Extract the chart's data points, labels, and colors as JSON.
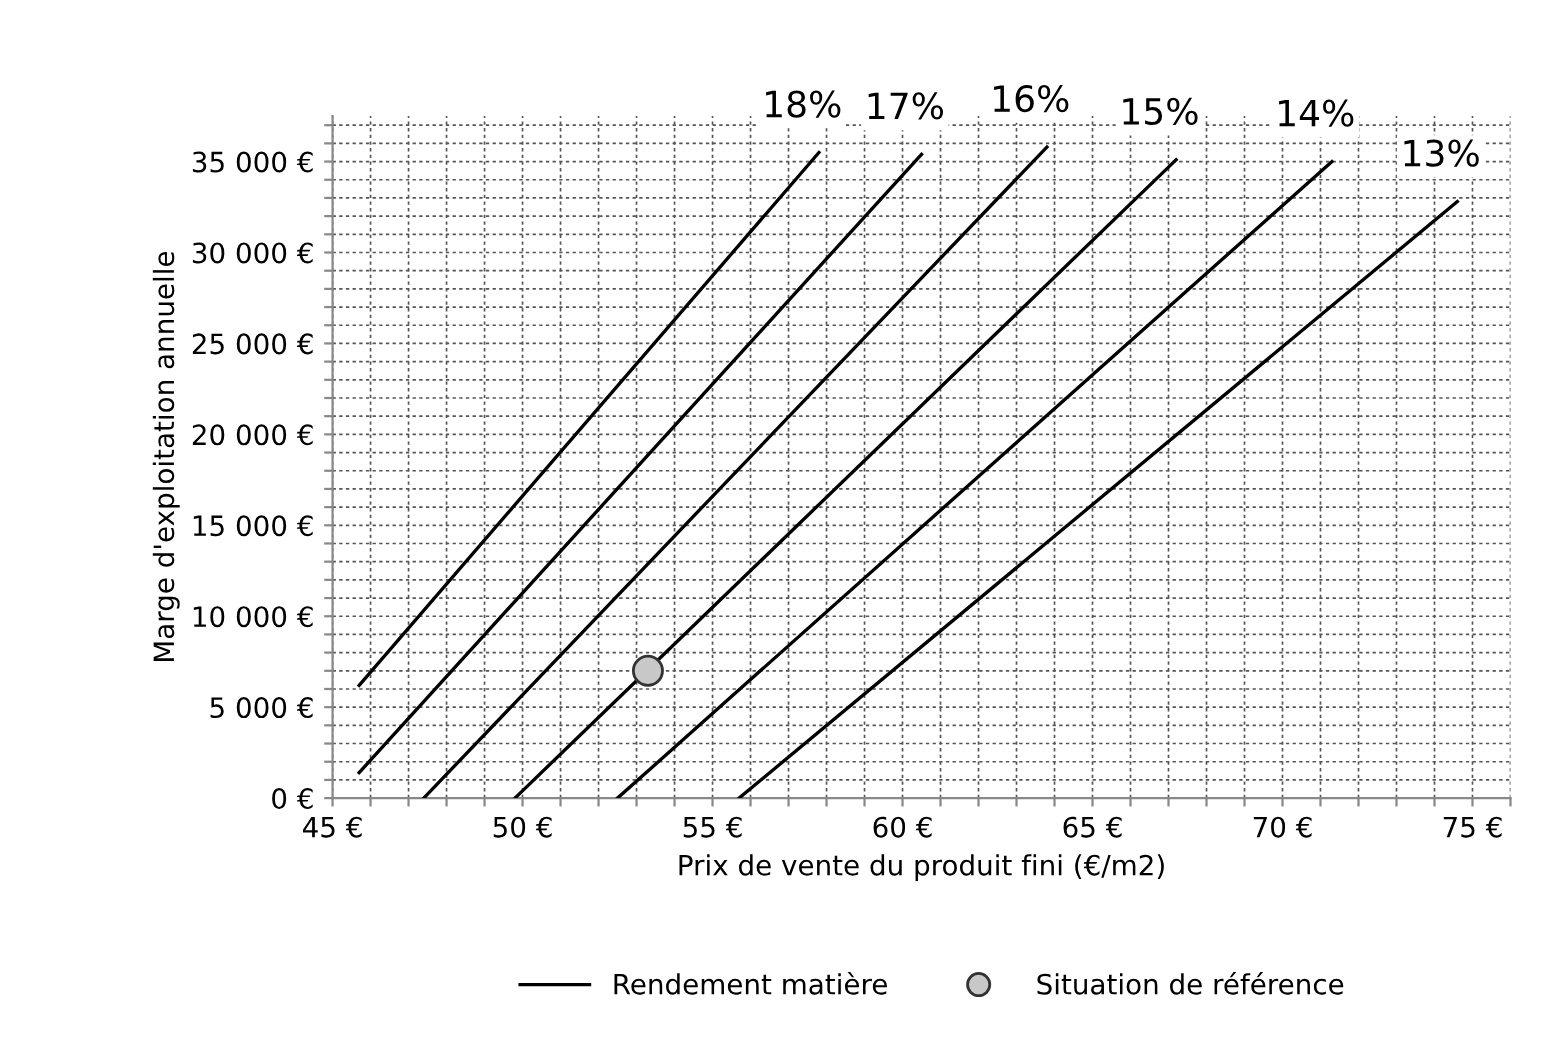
{
  "chart_data": {
    "type": "line",
    "xlabel": "Prix de vente du produit fini (€/m2)",
    "ylabel": "Marge d'exploitation annuelle",
    "series": [
      {
        "name": "Rendement matière",
        "color": "#000000",
        "x": [
          45.7,
          57.8
        ],
        "values": [
          6200,
          35500
        ]
      },
      {
        "color": "#000000",
        "x": [
          45.7,
          60.5
        ],
        "values": [
          1400,
          35400
        ]
      },
      {
        "color": "#000000",
        "x": [
          47.4,
          63.8
        ],
        "values": [
          0,
          35800
        ]
      },
      {
        "color": "#000000",
        "x": [
          49.8,
          67.2
        ],
        "values": [
          0,
          35100
        ]
      },
      {
        "color": "#000000",
        "x": [
          52.5,
          71.3
        ],
        "values": [
          0,
          35000
        ]
      },
      {
        "color": "#000000",
        "x": [
          55.7,
          74.6
        ],
        "values": [
          0,
          32800
        ]
      },
      {
        "name": "Situation de référence",
        "type": "scatter",
        "color": "#c8c8c8",
        "x": [
          53.3
        ],
        "values": [
          7000
        ],
        "marker": "circle"
      }
    ],
    "annotations": [
      {
        "text": "18%",
        "x": 57.8,
        "y": 35500
      },
      {
        "text": "17%",
        "x": 60.5,
        "y": 35400
      },
      {
        "text": "16%",
        "x": 63.8,
        "y": 35800
      },
      {
        "text": "15%",
        "x": 67.2,
        "y": 35100
      },
      {
        "text": "14%",
        "x": 71.3,
        "y": 35000
      },
      {
        "text": "13%",
        "x": 74.6,
        "y": 32800
      }
    ],
    "xlim": [
      45,
      76
    ],
    "ylim": [
      0,
      37500
    ],
    "xticks": [
      {
        "value": 45,
        "label": "45 €"
      },
      {
        "value": 46,
        "label": null
      },
      {
        "value": 47,
        "label": null
      },
      {
        "value": 48,
        "label": null
      },
      {
        "value": 49,
        "label": null
      },
      {
        "value": 50,
        "label": "50 €"
      },
      {
        "value": 51,
        "label": null
      },
      {
        "value": 52,
        "label": null
      },
      {
        "value": 53,
        "label": null
      },
      {
        "value": 54,
        "label": null
      },
      {
        "value": 55,
        "label": "55 €"
      },
      {
        "value": 56,
        "label": null
      },
      {
        "value": 57,
        "label": null
      },
      {
        "value": 58,
        "label": null
      },
      {
        "value": 59,
        "label": null
      },
      {
        "value": 60,
        "label": "60 €"
      },
      {
        "value": 61,
        "label": null
      },
      {
        "value": 62,
        "label": null
      },
      {
        "value": 63,
        "label": null
      },
      {
        "value": 64,
        "label": null
      },
      {
        "value": 65,
        "label": "65 €"
      },
      {
        "value": 66,
        "label": null
      },
      {
        "value": 67,
        "label": null
      },
      {
        "value": 68,
        "label": null
      },
      {
        "value": 69,
        "label": null
      },
      {
        "value": 70,
        "label": "70 €"
      },
      {
        "value": 71,
        "label": null
      },
      {
        "value": 72,
        "label": null
      },
      {
        "value": 73,
        "label": null
      },
      {
        "value": 74,
        "label": null
      },
      {
        "value": 75,
        "label": "75 €"
      },
      {
        "value": 76,
        "label": null
      }
    ],
    "yticks": [
      {
        "value": 0,
        "label": "0 €"
      },
      {
        "value": 1000,
        "label": null
      },
      {
        "value": 2000,
        "label": null
      },
      {
        "value": 3000,
        "label": null
      },
      {
        "value": 4000,
        "label": null
      },
      {
        "value": 5000,
        "label": "5 000 €"
      },
      {
        "value": 6000,
        "label": null
      },
      {
        "value": 7000,
        "label": null
      },
      {
        "value": 8000,
        "label": null
      },
      {
        "value": 9000,
        "label": null
      },
      {
        "value": 10000,
        "label": "10 000 €"
      },
      {
        "value": 11000,
        "label": null
      },
      {
        "value": 12000,
        "label": null
      },
      {
        "value": 13000,
        "label": null
      },
      {
        "value": 14000,
        "label": null
      },
      {
        "value": 15000,
        "label": "15 000 €"
      },
      {
        "value": 16000,
        "label": null
      },
      {
        "value": 17000,
        "label": null
      },
      {
        "value": 18000,
        "label": null
      },
      {
        "value": 19000,
        "label": null
      },
      {
        "value": 20000,
        "label": "20 000 €"
      },
      {
        "value": 21000,
        "label": null
      },
      {
        "value": 22000,
        "label": null
      },
      {
        "value": 23000,
        "label": null
      },
      {
        "value": 24000,
        "label": null
      },
      {
        "value": 25000,
        "label": "25 000 €"
      },
      {
        "value": 26000,
        "label": null
      },
      {
        "value": 27000,
        "label": null
      },
      {
        "value": 28000,
        "label": null
      },
      {
        "value": 29000,
        "label": null
      },
      {
        "value": 30000,
        "label": "30 000 €"
      },
      {
        "value": 31000,
        "label": null
      },
      {
        "value": 32000,
        "label": null
      },
      {
        "value": 33000,
        "label": null
      },
      {
        "value": 34000,
        "label": null
      },
      {
        "value": 35000,
        "label": "35 000 €"
      },
      {
        "value": 36000,
        "label": null
      },
      {
        "value": 37000,
        "label": null
      }
    ],
    "grid": true,
    "legend": "bottom",
    "line_style": "solid"
  }
}
